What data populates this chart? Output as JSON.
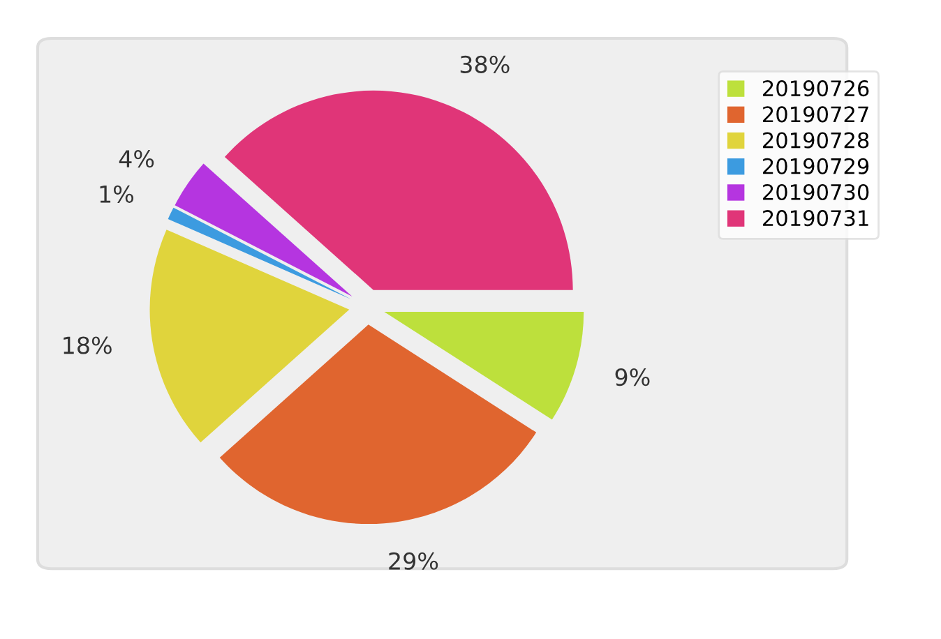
{
  "chart_data": {
    "type": "pie",
    "categories": [
      "20190726",
      "20190727",
      "20190728",
      "20190729",
      "20190730",
      "20190731"
    ],
    "values": [
      9,
      29,
      18,
      1,
      4,
      38
    ],
    "colors": [
      "#bde03c",
      "#e0652f",
      "#e0d43c",
      "#3c9be0",
      "#b535e0",
      "#e03578"
    ],
    "value_labels": [
      "9%",
      "29%",
      "18%",
      "1%",
      "4%",
      "38%"
    ],
    "legend": "top right"
  }
}
